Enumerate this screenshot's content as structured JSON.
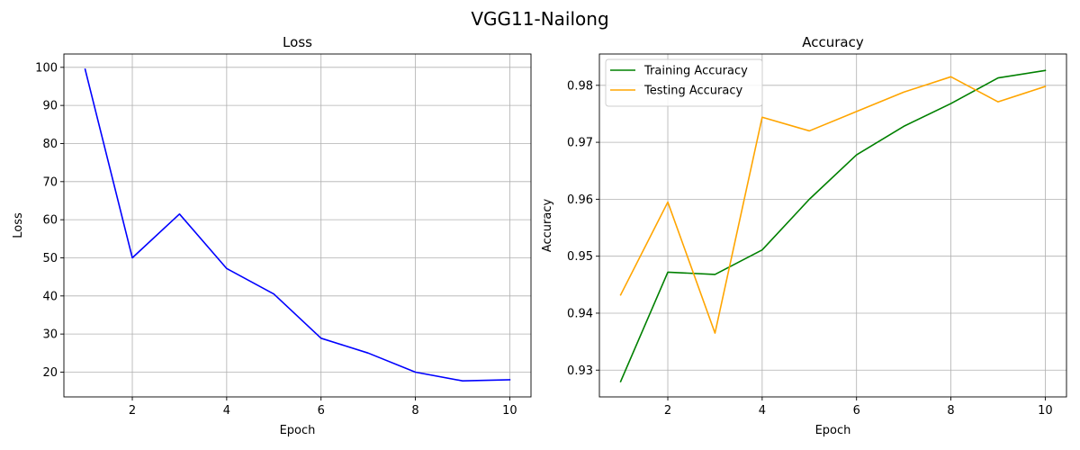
{
  "suptitle": "VGG11-Nailong",
  "chart_data": [
    {
      "type": "line",
      "title": "Loss",
      "xlabel": "Epoch",
      "ylabel": "Loss",
      "xlim": [
        0.55,
        10.45
      ],
      "ylim": [
        13.5,
        103.5
      ],
      "xticks": [
        2,
        4,
        6,
        8,
        10
      ],
      "yticks": [
        20,
        30,
        40,
        50,
        60,
        70,
        80,
        90,
        100
      ],
      "grid": true,
      "legend": null,
      "x": [
        1,
        2,
        3,
        4,
        5,
        6,
        7,
        8,
        9,
        10
      ],
      "series": [
        {
          "color": "#0000ff",
          "values": [
            99.5,
            50.0,
            61.5,
            47.2,
            40.5,
            28.9,
            25.0,
            20.0,
            17.7,
            18.0
          ]
        }
      ]
    },
    {
      "type": "line",
      "title": "Accuracy",
      "xlabel": "Epoch",
      "ylabel": "Accuracy",
      "xlim": [
        0.55,
        10.45
      ],
      "ylim": [
        0.9253,
        0.9855
      ],
      "xticks": [
        2,
        4,
        6,
        8,
        10
      ],
      "yticks": [
        0.93,
        0.94,
        0.95,
        0.96,
        0.97,
        0.98
      ],
      "grid": true,
      "legend": "top-left",
      "x": [
        1,
        2,
        3,
        4,
        5,
        6,
        7,
        8,
        9,
        10
      ],
      "series": [
        {
          "name": "Training Accuracy",
          "color": "#008000",
          "values": [
            0.928,
            0.9472,
            0.9468,
            0.9511,
            0.96,
            0.9678,
            0.9728,
            0.9768,
            0.9813,
            0.9826
          ]
        },
        {
          "name": "Testing Accuracy",
          "color": "#ffa500",
          "values": [
            0.9432,
            0.9595,
            0.9365,
            0.9744,
            0.972,
            0.9754,
            0.9788,
            0.9815,
            0.9771,
            0.9798
          ]
        }
      ]
    }
  ]
}
